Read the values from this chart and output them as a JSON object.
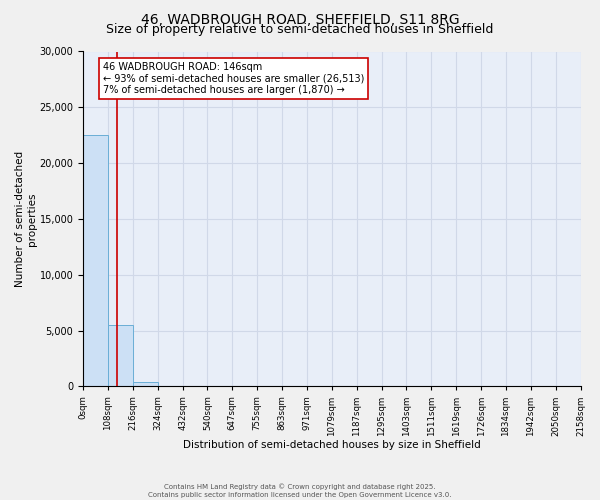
{
  "title_line1": "46, WADBROUGH ROAD, SHEFFIELD, S11 8RG",
  "title_line2": "Size of property relative to semi-detached houses in Sheffield",
  "xlabel": "Distribution of semi-detached houses by size in Sheffield",
  "ylabel": "Number of semi-detached\nproperties",
  "bin_edges": [
    0,
    108,
    216,
    324,
    432,
    540,
    647,
    755,
    863,
    971,
    1079,
    1187,
    1295,
    1403,
    1511,
    1619,
    1726,
    1834,
    1942,
    2050,
    2158
  ],
  "bin_labels": [
    "0sqm",
    "108sqm",
    "216sqm",
    "324sqm",
    "432sqm",
    "540sqm",
    "647sqm",
    "755sqm",
    "863sqm",
    "971sqm",
    "1079sqm",
    "1187sqm",
    "1295sqm",
    "1403sqm",
    "1511sqm",
    "1619sqm",
    "1726sqm",
    "1834sqm",
    "1942sqm",
    "2050sqm",
    "2158sqm"
  ],
  "bar_heights": [
    22500,
    5500,
    400,
    0,
    0,
    0,
    0,
    0,
    0,
    0,
    0,
    0,
    0,
    0,
    0,
    0,
    0,
    0,
    0,
    0
  ],
  "bar_color": "#cce0f5",
  "bar_edgecolor": "#6aaed6",
  "property_size": 146,
  "property_line_color": "#cc0000",
  "annotation_text": "46 WADBROUGH ROAD: 146sqm\n← 93% of semi-detached houses are smaller (26,513)\n7% of semi-detached houses are larger (1,870) →",
  "annotation_box_color": "#ffffff",
  "annotation_box_edgecolor": "#cc0000",
  "ylim": [
    0,
    30000
  ],
  "yticks": [
    0,
    5000,
    10000,
    15000,
    20000,
    25000,
    30000
  ],
  "grid_color": "#d0d8e8",
  "background_color": "#e8eef8",
  "fig_background_color": "#f0f0f0",
  "footer_text": "Contains HM Land Registry data © Crown copyright and database right 2025.\nContains public sector information licensed under the Open Government Licence v3.0.",
  "title_fontsize": 10,
  "subtitle_fontsize": 9,
  "annotation_fontsize": 7
}
